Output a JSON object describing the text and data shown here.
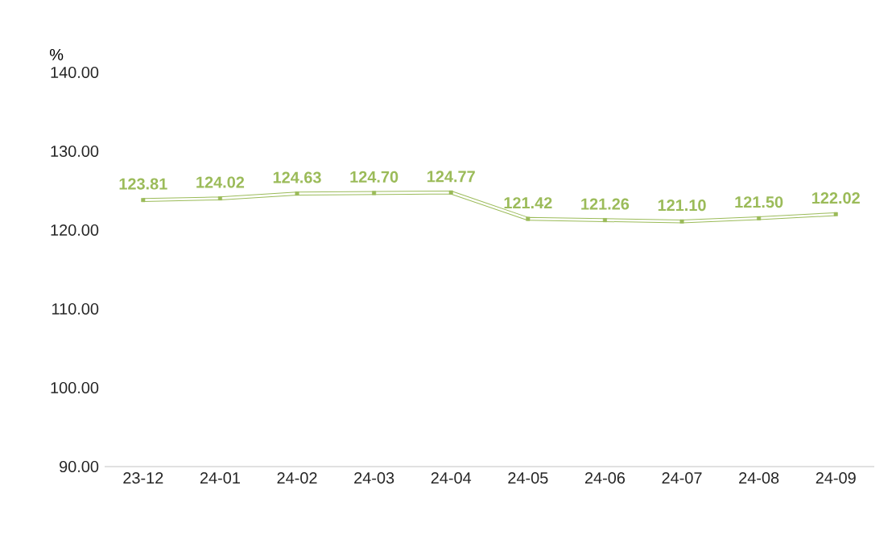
{
  "chart_data": {
    "type": "line",
    "ylabel": "%",
    "categories": [
      "23-12",
      "24-01",
      "24-02",
      "24-03",
      "24-04",
      "24-05",
      "24-06",
      "24-07",
      "24-08",
      "24-09"
    ],
    "series": [
      {
        "color": "#9bbb59",
        "values": [
          123.81,
          124.02,
          124.63,
          124.7,
          124.77,
          121.42,
          121.26,
          121.1,
          121.5,
          122.02
        ],
        "value_labels": [
          "123.81",
          "124.02",
          "124.63",
          "124.70",
          "124.77",
          "121.42",
          "121.26",
          "121.10",
          "121.50",
          "122.02"
        ]
      }
    ],
    "ylim": [
      90,
      140
    ],
    "yticks": [
      {
        "value": 90,
        "label": "90.00"
      },
      {
        "value": 100,
        "label": "100.00"
      },
      {
        "value": 110,
        "label": "110.00"
      },
      {
        "value": 120,
        "label": "120.00"
      },
      {
        "value": 130,
        "label": "130.00"
      },
      {
        "value": 140,
        "label": "140.00"
      }
    ],
    "grid": false,
    "marker": "square",
    "line_style": "solid"
  }
}
